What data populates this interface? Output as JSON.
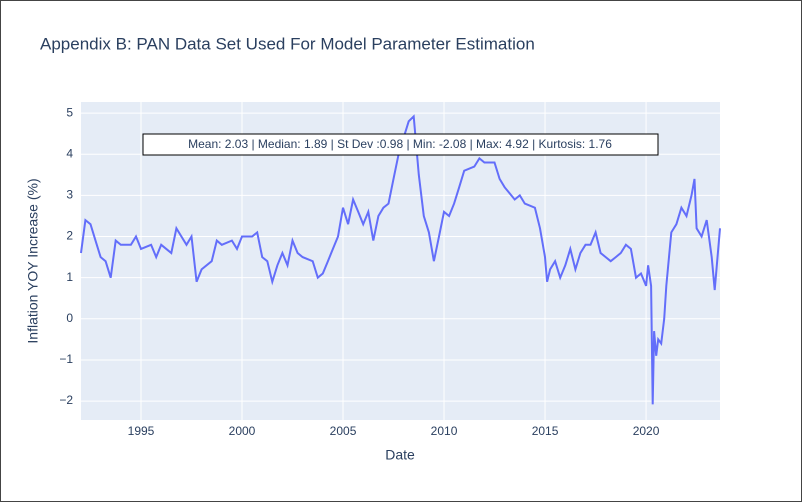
{
  "chart_data": {
    "type": "line",
    "title": "Appendix B: PAN Data Set Used For Model Parameter Estimation",
    "x_label": "Date",
    "y_label": "Inflation YOY Increase (%)",
    "annotation": "Mean: 2.03 | Median: 1.89 | St Dev :0.98 | Min: -2.08 | Max: 4.92 | Kurtosis: 1.76",
    "xlim": [
      1992.03,
      2023.66
    ],
    "ylim": [
      -2.46,
      5.27
    ],
    "xticks": [
      1995,
      2000,
      2005,
      2010,
      2015,
      2020
    ],
    "yticks": [
      {
        "value": -2,
        "label": "−2"
      },
      {
        "value": -1,
        "label": "−1"
      },
      0,
      1,
      2,
      3,
      4,
      5
    ],
    "grid": true,
    "series": [
      {
        "name": "Inflation",
        "color": "#636efa",
        "x": [
          1992.03,
          1992.25,
          1992.5,
          1992.75,
          1993.0,
          1993.25,
          1993.5,
          1993.75,
          1994.0,
          1994.5,
          1994.75,
          1995.0,
          1995.5,
          1995.75,
          1996.0,
          1996.5,
          1996.75,
          1997.0,
          1997.25,
          1997.5,
          1997.75,
          1998.0,
          1998.5,
          1998.75,
          1999.0,
          1999.5,
          1999.75,
          2000.0,
          2000.5,
          2000.75,
          2001.0,
          2001.25,
          2001.5,
          2001.75,
          2002.0,
          2002.25,
          2002.5,
          2002.75,
          2003.0,
          2003.5,
          2003.75,
          2004.0,
          2004.25,
          2004.5,
          2004.75,
          2005.0,
          2005.25,
          2005.5,
          2005.75,
          2006.0,
          2006.25,
          2006.5,
          2006.75,
          2007.0,
          2007.25,
          2007.5,
          2007.75,
          2008.0,
          2008.25,
          2008.5,
          2008.75,
          2009.0,
          2009.25,
          2009.5,
          2009.75,
          2010.0,
          2010.25,
          2010.5,
          2010.75,
          2011.0,
          2011.5,
          2011.75,
          2012.0,
          2012.5,
          2012.75,
          2013.0,
          2013.5,
          2013.75,
          2014.0,
          2014.5,
          2014.75,
          2015.0,
          2015.1,
          2015.25,
          2015.5,
          2015.75,
          2016.0,
          2016.25,
          2016.5,
          2016.75,
          2017.0,
          2017.25,
          2017.5,
          2017.75,
          2018.0,
          2018.25,
          2018.5,
          2018.75,
          2019.0,
          2019.25,
          2019.5,
          2019.75,
          2020.0,
          2020.1,
          2020.25,
          2020.33,
          2020.4,
          2020.5,
          2020.6,
          2020.75,
          2020.9,
          2021.0,
          2021.25,
          2021.5,
          2021.75,
          2022.0,
          2022.25,
          2022.4,
          2022.5,
          2022.75,
          2023.0,
          2023.25,
          2023.4,
          2023.66
        ],
        "values": [
          1.6,
          2.4,
          2.3,
          1.9,
          1.5,
          1.4,
          1.0,
          1.9,
          1.8,
          1.8,
          2.0,
          1.7,
          1.8,
          1.5,
          1.8,
          1.6,
          2.2,
          2.0,
          1.8,
          2.0,
          0.9,
          1.2,
          1.4,
          1.9,
          1.8,
          1.9,
          1.7,
          2.0,
          2.0,
          2.1,
          1.5,
          1.4,
          0.9,
          1.3,
          1.6,
          1.3,
          1.9,
          1.6,
          1.5,
          1.4,
          1.0,
          1.1,
          1.4,
          1.7,
          2.0,
          2.7,
          2.3,
          2.9,
          2.6,
          2.3,
          2.6,
          1.9,
          2.5,
          2.7,
          2.8,
          3.4,
          4.0,
          4.4,
          4.8,
          4.92,
          3.5,
          2.5,
          2.1,
          1.4,
          2.0,
          2.6,
          2.5,
          2.8,
          3.2,
          3.6,
          3.7,
          3.9,
          3.8,
          3.8,
          3.4,
          3.2,
          2.9,
          3.0,
          2.8,
          2.7,
          2.2,
          1.5,
          0.9,
          1.2,
          1.4,
          1.0,
          1.3,
          1.7,
          1.2,
          1.6,
          1.8,
          1.8,
          2.1,
          1.6,
          1.5,
          1.4,
          1.5,
          1.6,
          1.8,
          1.7,
          1.0,
          1.1,
          0.8,
          1.3,
          0.8,
          -2.08,
          -0.3,
          -0.9,
          -0.5,
          -0.6,
          0.0,
          0.8,
          2.1,
          2.3,
          2.7,
          2.5,
          3.0,
          3.4,
          2.2,
          2.0,
          2.4,
          1.5,
          0.7,
          2.2
        ]
      }
    ]
  }
}
